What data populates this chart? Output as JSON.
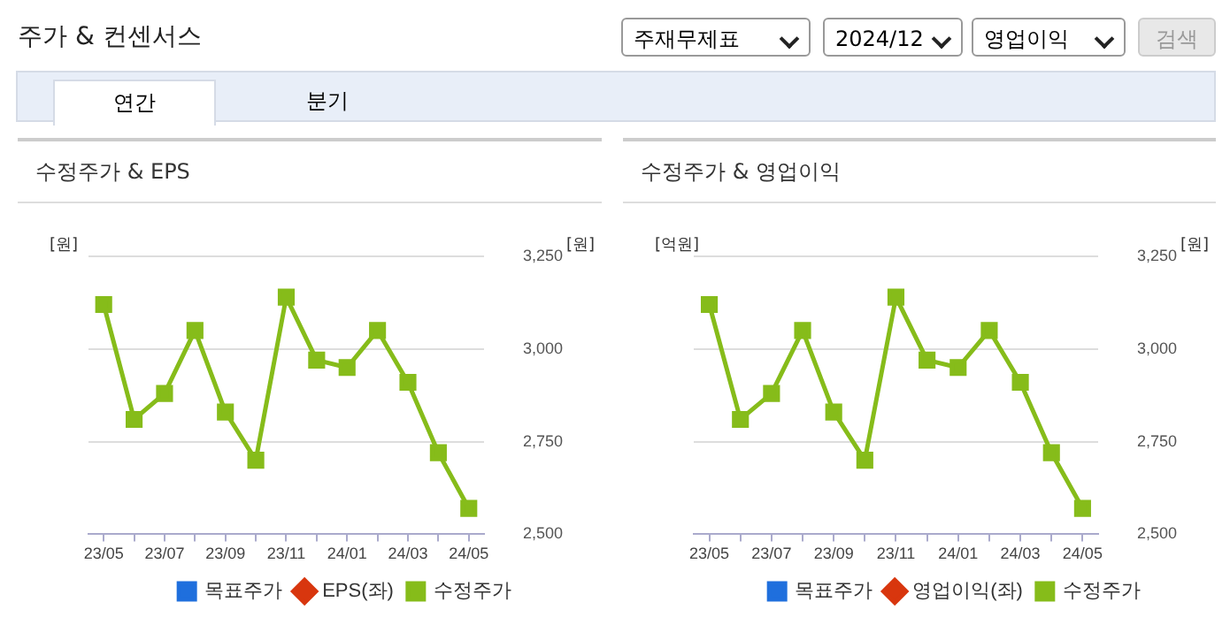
{
  "chart_data": [
    {
      "type": "other",
      "title": "주가 & 컨센서스",
      "annotations": [
        "주재무제표",
        "2024/12",
        "영업이익",
        "검색",
        "연간",
        "분기"
      ]
    },
    {
      "type": "line",
      "title": "수정주가 & EPS",
      "ylabel": "[원]",
      "y2label": "[원]",
      "categories": [
        "23/05",
        null,
        "23/07",
        null,
        "23/09",
        null,
        "23/11",
        null,
        "24/01",
        null,
        "24/03",
        null,
        "24/05"
      ],
      "series": [
        {
          "name": "목표주가",
          "color": "#1f6fdd",
          "marker": "square",
          "values": [
            null,
            null,
            null,
            null,
            null,
            null,
            null,
            null,
            null,
            null,
            null,
            null,
            null
          ]
        },
        {
          "name": "EPS(좌)",
          "color": "#d8360e",
          "marker": "diamond",
          "values": [
            null,
            null,
            null,
            null,
            null,
            null,
            null,
            null,
            null,
            null,
            null,
            null,
            null
          ]
        },
        {
          "name": "수정주가",
          "color": "#86bc1a",
          "marker": "square",
          "axis": "y2",
          "values": [
            3120,
            2810,
            2880,
            3050,
            2830,
            2700,
            3140,
            2970,
            2950,
            3050,
            2910,
            2720,
            2570
          ]
        }
      ],
      "y2lim": [
        2500,
        3250
      ],
      "y2ticks": [
        {
          "value": 2500,
          "label": "2,500"
        },
        {
          "value": 2750,
          "label": "2,750"
        },
        {
          "value": 3000,
          "label": "3,000"
        },
        {
          "value": 3250,
          "label": "3,250"
        }
      ],
      "grid": "y",
      "legend": "bottom"
    },
    {
      "type": "line",
      "title": "수정주가 & 영업이익",
      "ylabel": "[억원]",
      "y2label": "[원]",
      "categories": [
        "23/05",
        null,
        "23/07",
        null,
        "23/09",
        null,
        "23/11",
        null,
        "24/01",
        null,
        "24/03",
        null,
        "24/05"
      ],
      "series": [
        {
          "name": "목표주가",
          "color": "#1f6fdd",
          "marker": "square",
          "values": [
            null,
            null,
            null,
            null,
            null,
            null,
            null,
            null,
            null,
            null,
            null,
            null,
            null
          ]
        },
        {
          "name": "영업이익(좌)",
          "color": "#d8360e",
          "marker": "diamond",
          "values": [
            null,
            null,
            null,
            null,
            null,
            null,
            null,
            null,
            null,
            null,
            null,
            null,
            null
          ]
        },
        {
          "name": "수정주가",
          "color": "#86bc1a",
          "marker": "square",
          "axis": "y2",
          "values": [
            3120,
            2810,
            2880,
            3050,
            2830,
            2700,
            3140,
            2970,
            2950,
            3050,
            2910,
            2720,
            2570
          ]
        }
      ],
      "y2lim": [
        2500,
        3250
      ],
      "y2ticks": [
        {
          "value": 2500,
          "label": "2,500"
        },
        {
          "value": 2750,
          "label": "2,750"
        },
        {
          "value": 3000,
          "label": "3,000"
        },
        {
          "value": 3250,
          "label": "3,250"
        }
      ],
      "grid": "y",
      "legend": "bottom"
    }
  ]
}
